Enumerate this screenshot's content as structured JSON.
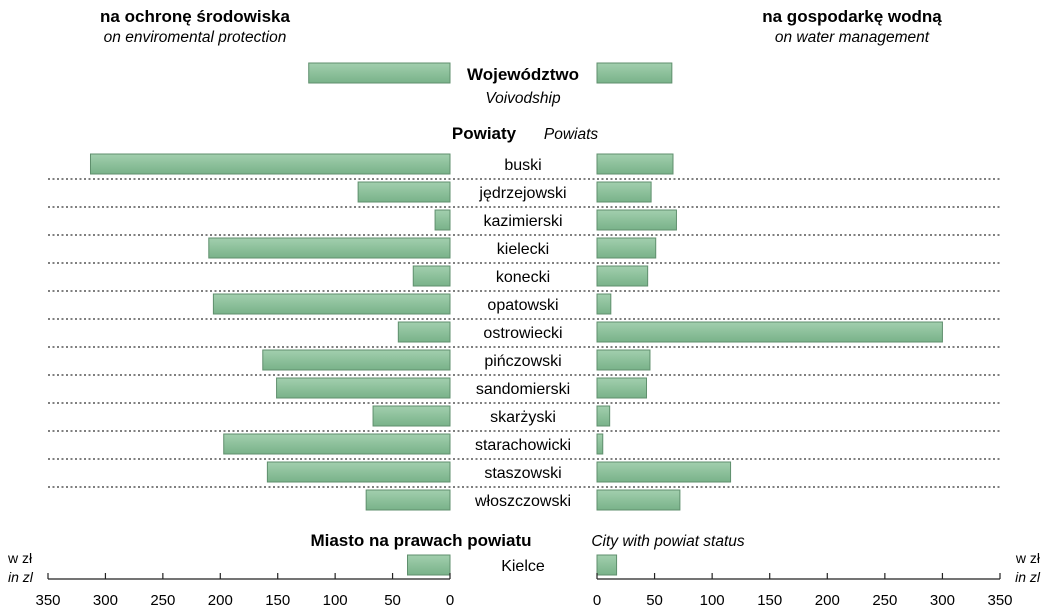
{
  "headers": {
    "left_pl": "na ochronę środowiska",
    "left_en": "on enviromental protection",
    "right_pl": "na gospodarkę wodną",
    "right_en": "on water management"
  },
  "sections": {
    "voivodship_pl": "Województwo",
    "voivodship_en": "Voivodship",
    "powiats_pl": "Powiaty",
    "powiats_en": "Powiats",
    "city_pl": "Miasto na prawach powiatu",
    "city_en": "City with powiat status"
  },
  "units": {
    "pl": "w zł",
    "en": "in zl"
  },
  "chart_data": {
    "type": "bar",
    "orientation": "horizontal-butterfly",
    "left_axis": {
      "range": [
        0,
        350
      ],
      "ticks": [
        350,
        300,
        250,
        200,
        150,
        100,
        50,
        0
      ]
    },
    "right_axis": {
      "range": [
        0,
        350
      ],
      "ticks": [
        0,
        50,
        100,
        150,
        200,
        250,
        300,
        350
      ]
    },
    "bar_color": "#8cc29a",
    "voivodship": {
      "left": 123,
      "right": 65
    },
    "categories": [
      "buski",
      "jędrzejowski",
      "kazimierski",
      "kielecki",
      "konecki",
      "opatowski",
      "ostrowiecki",
      "pińczowski",
      "sandomierski",
      "skarżyski",
      "starachowicki",
      "staszowski",
      "włoszczowski"
    ],
    "series": [
      {
        "values": [
          313,
          80,
          13,
          210,
          32,
          206,
          45,
          163,
          151,
          67,
          197,
          159,
          73
        ]
      },
      {
        "values": [
          66,
          47,
          69,
          51,
          44,
          12,
          300,
          46,
          43,
          11,
          5,
          116,
          72
        ]
      }
    ],
    "city": {
      "label": "Kielce",
      "left": 37,
      "right": 17
    }
  }
}
